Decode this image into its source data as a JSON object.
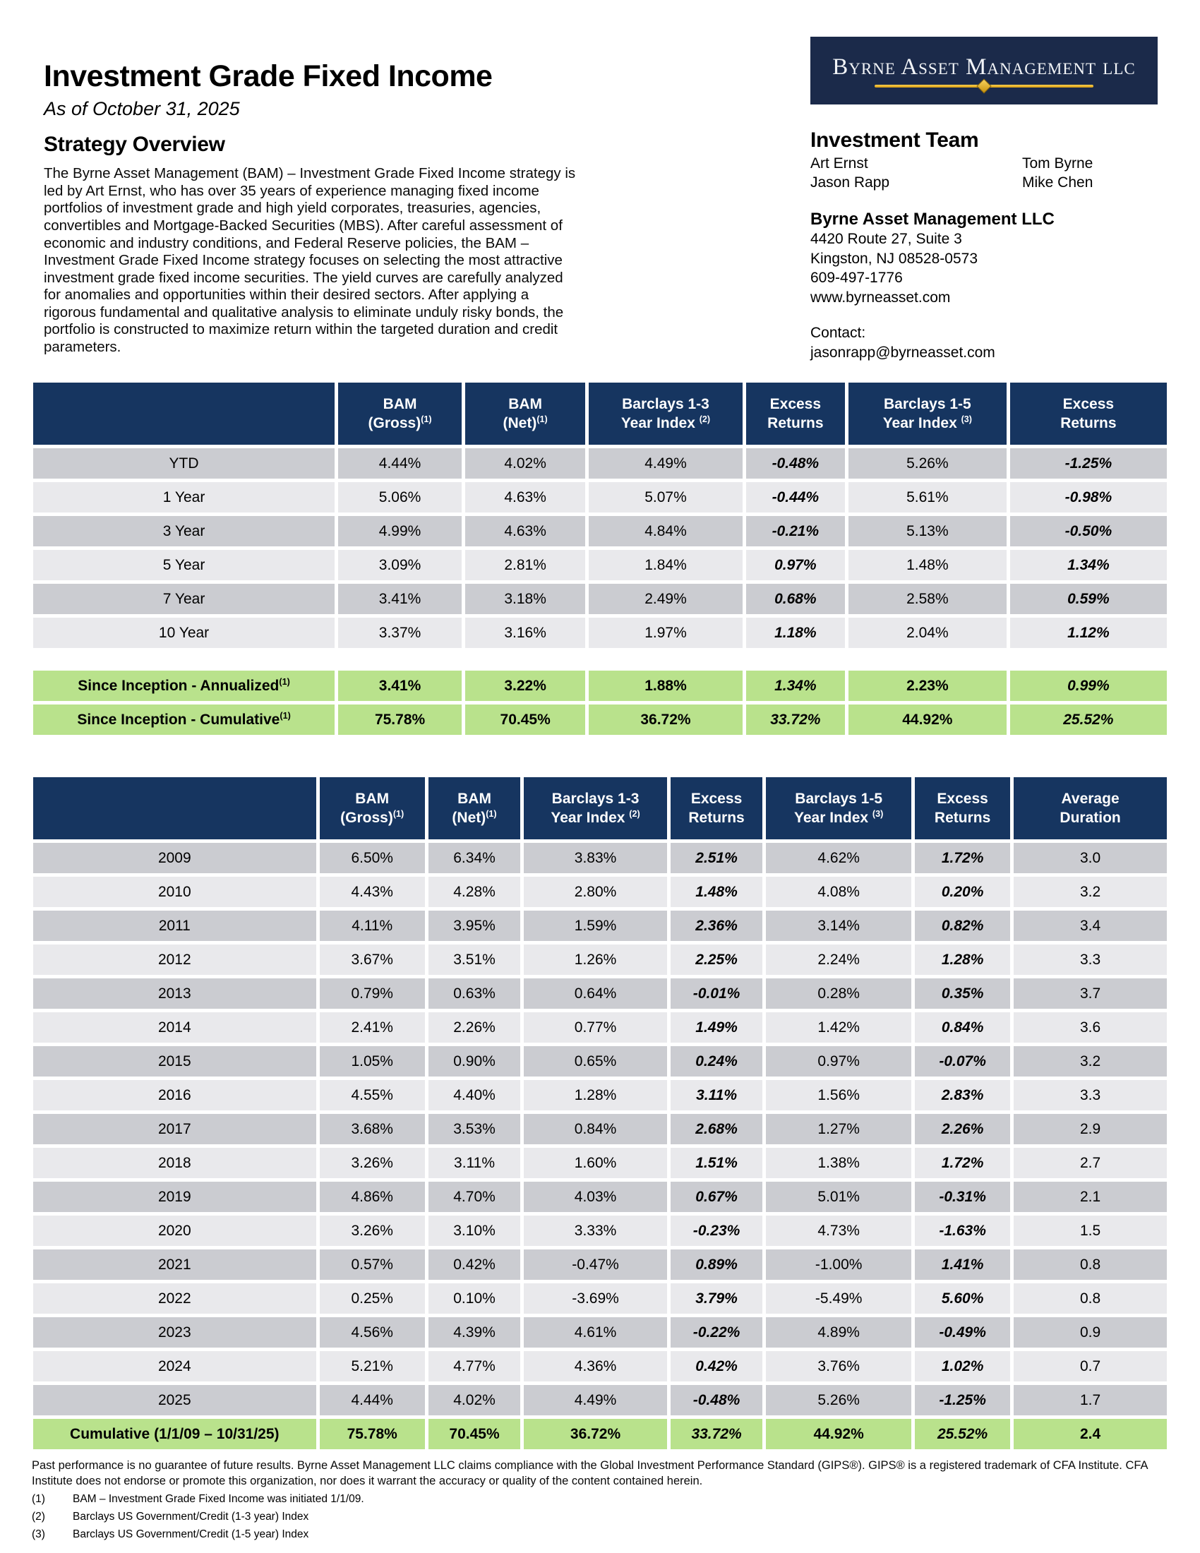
{
  "header": {
    "title": "Investment Grade Fixed Income",
    "as_of": "As of October 31, 2025"
  },
  "overview": {
    "heading": "Strategy Overview",
    "text": "The Byrne Asset Management (BAM) – Investment Grade Fixed Income strategy is led by Art Ernst, who has over 35 years of experience managing fixed income portfolios of investment grade and high yield corporates, treasuries, agencies, convertibles and Mortgage-Backed Securities (MBS).  After careful assessment of economic and industry conditions, and Federal Reserve policies, the BAM – Investment Grade Fixed Income strategy focuses on selecting the most attractive investment grade fixed income securities.  The yield curves are carefully analyzed for anomalies and opportunities within their desired sectors.  After applying a rigorous fundamental and qualitative analysis to eliminate unduly risky bonds, the portfolio is constructed to maximize return within the targeted duration and credit parameters."
  },
  "logo": {
    "text": "Byrne Asset Management llc"
  },
  "team": {
    "heading": "Investment Team",
    "col1": [
      "Art Ernst",
      "Jason Rapp"
    ],
    "col2": [
      "Tom Byrne",
      "Mike Chen"
    ]
  },
  "company": {
    "name": "Byrne Asset Management LLC",
    "address1": "4420 Route 27, Suite 3",
    "address2": "Kingston, NJ 08528-0573",
    "phone": "609-497-1776",
    "website": "www.byrneasset.com",
    "contact_label": "Contact:",
    "contact_email": "jasonrapp@byrneasset.com"
  },
  "table1": {
    "headers": [
      {
        "l1": "",
        "l2": "",
        "sup": ""
      },
      {
        "l1": "BAM",
        "l2": "(Gross)",
        "sup": "(1)"
      },
      {
        "l1": "BAM",
        "l2": "(Net)",
        "sup": "(1)"
      },
      {
        "l1": "Barclays 1-3",
        "l2": "Year Index ",
        "sup": "(2)"
      },
      {
        "l1": "Excess",
        "l2": "Returns",
        "sup": ""
      },
      {
        "l1": "Barclays 1-5",
        "l2": "Year Index ",
        "sup": "(3)"
      },
      {
        "l1": "Excess",
        "l2": "Returns",
        "sup": ""
      }
    ],
    "rows": [
      {
        "label": "YTD",
        "values": [
          "4.44%",
          "4.02%",
          "4.49%",
          "-0.48%",
          "5.26%",
          "-1.25%"
        ]
      },
      {
        "label": "1 Year",
        "values": [
          "5.06%",
          "4.63%",
          "5.07%",
          "-0.44%",
          "5.61%",
          "-0.98%"
        ]
      },
      {
        "label": "3 Year",
        "values": [
          "4.99%",
          "4.63%",
          "4.84%",
          "-0.21%",
          "5.13%",
          "-0.50%"
        ]
      },
      {
        "label": "5 Year",
        "values": [
          "3.09%",
          "2.81%",
          "1.84%",
          "0.97%",
          "1.48%",
          "1.34%"
        ]
      },
      {
        "label": "7 Year",
        "values": [
          "3.41%",
          "3.18%",
          "2.49%",
          "0.68%",
          "2.58%",
          "0.59%"
        ]
      },
      {
        "label": "10 Year",
        "values": [
          "3.37%",
          "3.16%",
          "1.97%",
          "1.18%",
          "2.04%",
          "1.12%"
        ]
      }
    ],
    "inception_rows": [
      {
        "label": "Since Inception - Annualized",
        "sup": "(1)",
        "cls": "green",
        "values": [
          "3.41%",
          "3.22%",
          "1.88%",
          "1.34%",
          "2.23%",
          "0.99%"
        ]
      },
      {
        "label": "Since Inception - Cumulative",
        "sup": "(1)",
        "cls": "green",
        "values": [
          "75.78%",
          "70.45%",
          "36.72%",
          "33.72%",
          "44.92%",
          "25.52%"
        ]
      }
    ]
  },
  "table2": {
    "headers": [
      {
        "l1": "",
        "l2": "",
        "sup": ""
      },
      {
        "l1": "BAM",
        "l2": "(Gross)",
        "sup": "(1)"
      },
      {
        "l1": "BAM",
        "l2": "(Net)",
        "sup": "(1)"
      },
      {
        "l1": "Barclays 1-3",
        "l2": "Year Index ",
        "sup": "(2)"
      },
      {
        "l1": "Excess",
        "l2": "Returns",
        "sup": ""
      },
      {
        "l1": "Barclays 1-5",
        "l2": "Year Index ",
        "sup": "(3)"
      },
      {
        "l1": "Excess",
        "l2": "Returns",
        "sup": ""
      },
      {
        "l1": "Average",
        "l2": "Duration",
        "sup": ""
      }
    ],
    "rows": [
      {
        "label": "2009",
        "values": [
          "6.50%",
          "6.34%",
          "3.83%",
          "2.51%",
          "4.62%",
          "1.72%",
          "3.0"
        ]
      },
      {
        "label": "2010",
        "values": [
          "4.43%",
          "4.28%",
          "2.80%",
          "1.48%",
          "4.08%",
          "0.20%",
          "3.2"
        ]
      },
      {
        "label": "2011",
        "values": [
          "4.11%",
          "3.95%",
          "1.59%",
          "2.36%",
          "3.14%",
          "0.82%",
          "3.4"
        ]
      },
      {
        "label": "2012",
        "values": [
          "3.67%",
          "3.51%",
          "1.26%",
          "2.25%",
          "2.24%",
          "1.28%",
          "3.3"
        ]
      },
      {
        "label": "2013",
        "values": [
          "0.79%",
          "0.63%",
          "0.64%",
          "-0.01%",
          "0.28%",
          "0.35%",
          "3.7"
        ]
      },
      {
        "label": "2014",
        "values": [
          "2.41%",
          "2.26%",
          "0.77%",
          "1.49%",
          "1.42%",
          "0.84%",
          "3.6"
        ]
      },
      {
        "label": "2015",
        "values": [
          "1.05%",
          "0.90%",
          "0.65%",
          "0.24%",
          "0.97%",
          "-0.07%",
          "3.2"
        ]
      },
      {
        "label": "2016",
        "values": [
          "4.55%",
          "4.40%",
          "1.28%",
          "3.11%",
          "1.56%",
          "2.83%",
          "3.3"
        ]
      },
      {
        "label": "2017",
        "values": [
          "3.68%",
          "3.53%",
          "0.84%",
          "2.68%",
          "1.27%",
          "2.26%",
          "2.9"
        ]
      },
      {
        "label": "2018",
        "values": [
          "3.26%",
          "3.11%",
          "1.60%",
          "1.51%",
          "1.38%",
          "1.72%",
          "2.7"
        ]
      },
      {
        "label": "2019",
        "values": [
          "4.86%",
          "4.70%",
          "4.03%",
          "0.67%",
          "5.01%",
          "-0.31%",
          "2.1"
        ]
      },
      {
        "label": "2020",
        "values": [
          "3.26%",
          "3.10%",
          "3.33%",
          "-0.23%",
          "4.73%",
          "-1.63%",
          "1.5"
        ]
      },
      {
        "label": "2021",
        "values": [
          "0.57%",
          "0.42%",
          "-0.47%",
          "0.89%",
          "-1.00%",
          "1.41%",
          "0.8"
        ]
      },
      {
        "label": "2022",
        "values": [
          "0.25%",
          "0.10%",
          "-3.69%",
          "3.79%",
          "-5.49%",
          "5.60%",
          "0.8"
        ]
      },
      {
        "label": "2023",
        "values": [
          "4.56%",
          "4.39%",
          "4.61%",
          "-0.22%",
          "4.89%",
          "-0.49%",
          "0.9"
        ]
      },
      {
        "label": "2024",
        "values": [
          "5.21%",
          "4.77%",
          "4.36%",
          "0.42%",
          "3.76%",
          "1.02%",
          "0.7"
        ]
      },
      {
        "label": "2025",
        "values": [
          "4.44%",
          "4.02%",
          "4.49%",
          "-0.48%",
          "5.26%",
          "-1.25%",
          "1.7"
        ]
      },
      {
        "label": "Cumulative (1/1/09 – 10/31/25)",
        "cls": "green",
        "values": [
          "75.78%",
          "70.45%",
          "36.72%",
          "33.72%",
          "44.92%",
          "25.52%",
          "2.4"
        ]
      }
    ]
  },
  "footer": {
    "disclaimer": "Past performance is no guarantee of future results.  Byrne Asset Management LLC claims compliance with the Global Investment Performance Standard (GIPS®).  GIPS® is a registered trademark of CFA Institute.  CFA Institute does not endorse or promote this organization, nor does it warrant the accuracy or quality of the content contained herein.",
    "notes": [
      {
        "num": "(1)",
        "text": "BAM – Investment Grade Fixed Income was initiated 1/1/09."
      },
      {
        "num": "(2)",
        "text": "Barclays US Government/Credit (1-3 year) Index"
      },
      {
        "num": "(3)",
        "text": "Barclays US Government/Credit (1-5 year) Index"
      }
    ]
  },
  "colors": {
    "table_header_navy": "#163560",
    "logo_navy": "#1b2a4a",
    "logo_gold": "#e9af1e",
    "summary_green": "#b9e28c",
    "row_dark": "#cbccd1",
    "row_light": "#e9e9ec"
  }
}
